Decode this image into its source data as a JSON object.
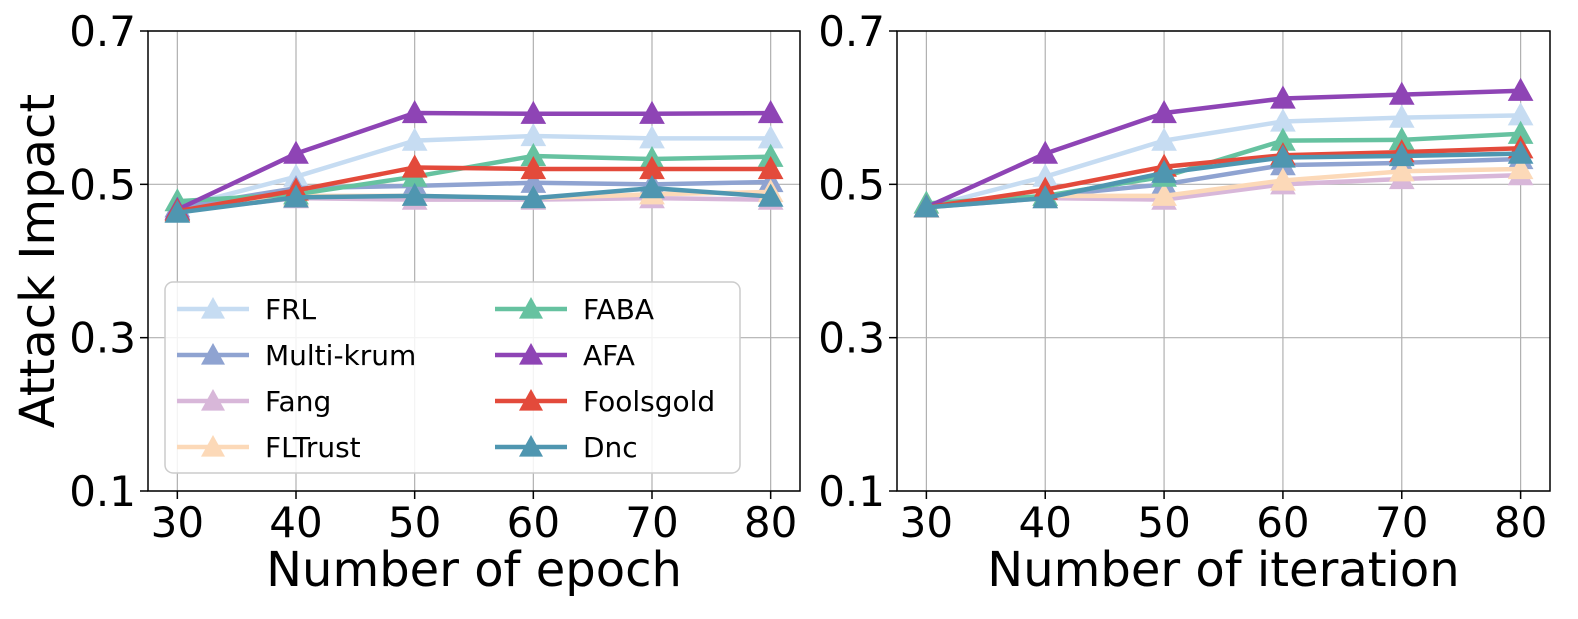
{
  "chart_data": [
    {
      "type": "line",
      "title": "",
      "xlabel": "Number of epoch",
      "ylabel": "Attack Impact",
      "x": [
        30,
        40,
        50,
        60,
        70,
        80
      ],
      "xticks": [
        "30",
        "40",
        "50",
        "60",
        "70",
        "80"
      ],
      "yticks": [
        "0.1",
        "0.3",
        "0.5",
        "0.7"
      ],
      "ylim": [
        0.1,
        0.7
      ],
      "grid": true,
      "legend_position": "lower-left",
      "series": [
        {
          "name": "FRL",
          "color": "#c6dcf2",
          "values": [
            0.47,
            0.51,
            0.557,
            0.563,
            0.56,
            0.56
          ]
        },
        {
          "name": "Multi-krum",
          "color": "#8fa3d1",
          "values": [
            0.47,
            0.495,
            0.498,
            0.502,
            0.5,
            0.503
          ]
        },
        {
          "name": "Fang",
          "color": "#d8b7d9",
          "values": [
            0.465,
            0.482,
            0.48,
            0.48,
            0.482,
            0.48
          ]
        },
        {
          "name": "FLTrust",
          "color": "#fcd9b8",
          "values": [
            0.465,
            0.485,
            0.485,
            0.482,
            0.487,
            0.49
          ]
        },
        {
          "name": "FABA",
          "color": "#66c2a0",
          "values": [
            0.478,
            0.487,
            0.51,
            0.537,
            0.533,
            0.536
          ]
        },
        {
          "name": "AFA",
          "color": "#8e44b5",
          "values": [
            0.467,
            0.54,
            0.593,
            0.592,
            0.592,
            0.593
          ]
        },
        {
          "name": "Foolsgold",
          "color": "#e34a3b",
          "values": [
            0.465,
            0.492,
            0.522,
            0.52,
            0.52,
            0.52
          ]
        },
        {
          "name": "Dnc",
          "color": "#4f96b0",
          "values": [
            0.463,
            0.483,
            0.485,
            0.482,
            0.495,
            0.484
          ]
        }
      ]
    },
    {
      "type": "line",
      "title": "",
      "xlabel": "Number of iteration",
      "ylabel": "",
      "x": [
        30,
        40,
        50,
        60,
        70,
        80
      ],
      "xticks": [
        "30",
        "40",
        "50",
        "60",
        "70",
        "80"
      ],
      "yticks": [
        "0.1",
        "0.3",
        "0.5",
        "0.7"
      ],
      "ylim": [
        0.1,
        0.7
      ],
      "grid": true,
      "legend_position": "none",
      "series": [
        {
          "name": "FRL",
          "color": "#c6dcf2",
          "values": [
            0.47,
            0.51,
            0.557,
            0.582,
            0.587,
            0.59
          ]
        },
        {
          "name": "Multi-krum",
          "color": "#8fa3d1",
          "values": [
            0.47,
            0.485,
            0.5,
            0.525,
            0.528,
            0.533
          ]
        },
        {
          "name": "Fang",
          "color": "#d8b7d9",
          "values": [
            0.47,
            0.482,
            0.48,
            0.5,
            0.507,
            0.512
          ]
        },
        {
          "name": "FLTrust",
          "color": "#fcd9b8",
          "values": [
            0.47,
            0.485,
            0.485,
            0.505,
            0.517,
            0.52
          ]
        },
        {
          "name": "FABA",
          "color": "#66c2a0",
          "values": [
            0.475,
            0.485,
            0.51,
            0.557,
            0.558,
            0.566
          ]
        },
        {
          "name": "AFA",
          "color": "#8e44b5",
          "values": [
            0.47,
            0.54,
            0.593,
            0.612,
            0.617,
            0.622
          ]
        },
        {
          "name": "Foolsgold",
          "color": "#e34a3b",
          "values": [
            0.47,
            0.493,
            0.523,
            0.538,
            0.542,
            0.547
          ]
        },
        {
          "name": "Dnc",
          "color": "#4f96b0",
          "values": [
            0.47,
            0.482,
            0.515,
            0.535,
            0.537,
            0.54
          ]
        }
      ]
    }
  ]
}
